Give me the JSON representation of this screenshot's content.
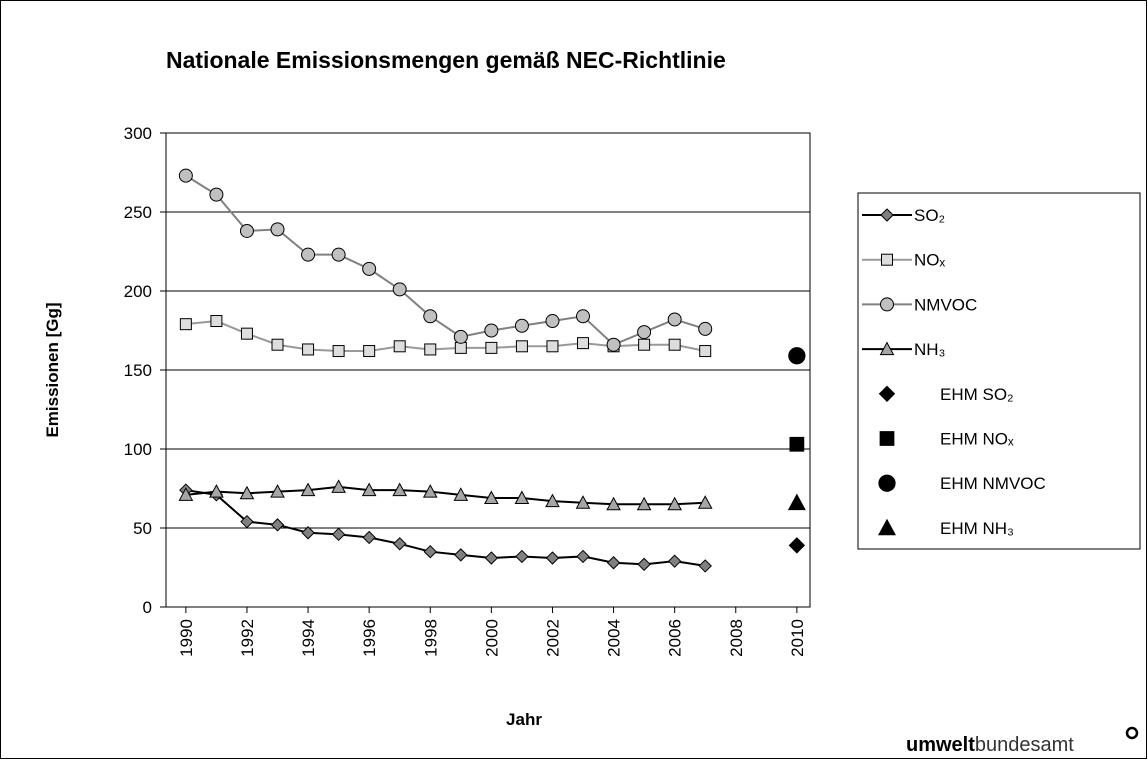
{
  "chart_data": {
    "type": "line",
    "title": "Nationale Emissionsmengen gemäß NEC-Richtlinie",
    "x_label": "Jahr",
    "y_label": "Emissionen [Gg]",
    "x": [
      1990,
      1991,
      1992,
      1993,
      1994,
      1995,
      1996,
      1997,
      1998,
      1999,
      2000,
      2001,
      2002,
      2003,
      2004,
      2005,
      2006,
      2007
    ],
    "xlim": [
      1989.35,
      2010.43
    ],
    "xticks": [
      1990,
      1992,
      1994,
      1996,
      1998,
      2000,
      2002,
      2004,
      2006,
      2008,
      2010
    ],
    "ylim": [
      0,
      300
    ],
    "yticks": [
      0,
      50,
      100,
      150,
      200,
      250,
      300
    ],
    "grid": true,
    "legend": "right",
    "series": [
      {
        "name": "SO₂",
        "color": "#000000",
        "marker": "diamond",
        "marker_fill": "#808080",
        "values": [
          74,
          71,
          54,
          52,
          47,
          46,
          44,
          40,
          35,
          33,
          31,
          32,
          31,
          32,
          28,
          27,
          29,
          26
        ]
      },
      {
        "name": "NOₓ",
        "color": "#999999",
        "marker": "square",
        "marker_fill": "#dddddd",
        "values": [
          179,
          181,
          173,
          166,
          163,
          162,
          162,
          165,
          163,
          164,
          164,
          165,
          165,
          167,
          165,
          166,
          166,
          162
        ]
      },
      {
        "name": "NMVOC",
        "color": "#808080",
        "marker": "circle",
        "marker_fill": "#c0c0c0",
        "values": [
          273,
          261,
          238,
          239,
          223,
          223,
          214,
          201,
          184,
          171,
          175,
          178,
          181,
          184,
          166,
          174,
          182,
          176
        ]
      },
      {
        "name": "NH₃",
        "color": "#000000",
        "marker": "triangle",
        "marker_fill": "#a6a6a6",
        "values": [
          71,
          73,
          72,
          73,
          74,
          76,
          74,
          74,
          73,
          71,
          69,
          69,
          67,
          66,
          65,
          65,
          65,
          66
        ]
      },
      {
        "name": "EHM SO₂",
        "color": "#000000",
        "marker": "diamond",
        "marker_fill": "#000000",
        "line": false,
        "x": [
          2010
        ],
        "values": [
          39
        ]
      },
      {
        "name": "EHM NOₓ",
        "color": "#000000",
        "marker": "square",
        "marker_fill": "#000000",
        "line": false,
        "x": [
          2010
        ],
        "values": [
          103
        ]
      },
      {
        "name": "EHM NMVOC",
        "color": "#000000",
        "marker": "circle",
        "marker_fill": "#000000",
        "line": false,
        "x": [
          2010
        ],
        "values": [
          159
        ]
      },
      {
        "name": "EHM NH₃",
        "color": "#000000",
        "marker": "triangle",
        "marker_fill": "#000000",
        "line": false,
        "x": [
          2010
        ],
        "values": [
          66
        ]
      }
    ]
  },
  "logo": {
    "bold": "umwelt",
    "regular": "bundesamt"
  }
}
